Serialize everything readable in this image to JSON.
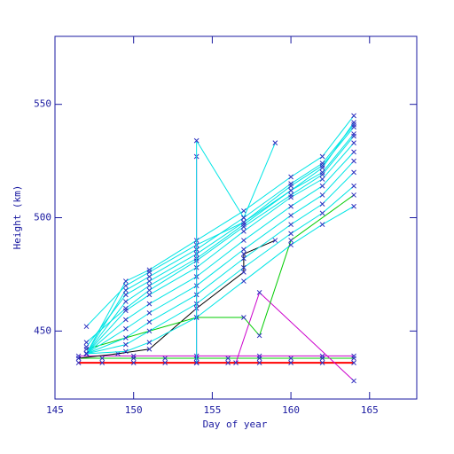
{
  "chart_data": {
    "type": "line",
    "x_label": "Day of year",
    "y_label": "Height (km)",
    "xlim": [
      145,
      168
    ],
    "ylim": [
      420,
      580
    ],
    "xticks": [
      145,
      150,
      155,
      160,
      165
    ],
    "yticks": [
      450,
      500,
      550
    ],
    "axis_color": "#1a1aa0",
    "marker_color": "#3030c0",
    "series": [
      {
        "color": "#ff0000",
        "x": [
          146.5,
          148,
          150,
          152,
          154,
          156,
          158,
          160,
          162,
          164
        ],
        "values": [
          436,
          436,
          436,
          436,
          436,
          436,
          436,
          436,
          436,
          436
        ]
      },
      {
        "color": "#00cc00",
        "x": [
          146.5,
          148,
          150,
          152,
          154,
          156,
          158,
          160,
          162,
          164
        ],
        "values": [
          438,
          438,
          438,
          438,
          438,
          438,
          438,
          438,
          438,
          438
        ]
      },
      {
        "color": "#cc00cc",
        "x": [
          146.5,
          150,
          154,
          158,
          162,
          164
        ],
        "values": [
          439,
          439,
          439,
          439,
          439,
          439
        ]
      },
      {
        "color": "#cc00cc",
        "x": [
          154,
          154
        ],
        "values": [
          436,
          527
        ]
      },
      {
        "color": "#cc00cc",
        "x": [
          156.5,
          158,
          164
        ],
        "values": [
          436,
          467,
          428
        ]
      },
      {
        "color": "#000000",
        "x": [
          146.5,
          149,
          151,
          154,
          157,
          157,
          159
        ],
        "values": [
          438,
          440,
          442,
          460,
          476,
          484,
          490
        ]
      },
      {
        "color": "#00cc00",
        "x": [
          147,
          154,
          157,
          158,
          160,
          164
        ],
        "values": [
          442,
          456,
          456,
          448,
          490,
          510
        ]
      },
      {
        "color": "#00e5e5",
        "x": [
          147,
          149.5,
          151,
          154,
          157,
          160,
          162,
          164
        ],
        "values": [
          440,
          472,
          477,
          490,
          503,
          518,
          527,
          545
        ]
      },
      {
        "color": "#00e5e5",
        "x": [
          147,
          149.5,
          151,
          154,
          157,
          160,
          162,
          164
        ],
        "values": [
          440,
          468,
          474,
          486,
          500,
          515,
          524,
          541
        ]
      },
      {
        "color": "#00e5e5",
        "x": [
          147,
          149.5,
          151,
          154,
          157,
          160,
          162,
          164
        ],
        "values": [
          440,
          463,
          470,
          482,
          497,
          512,
          520,
          537
        ]
      },
      {
        "color": "#00e5e5",
        "x": [
          147,
          149.5,
          151,
          154,
          157,
          160,
          162,
          164
        ],
        "values": [
          440,
          459,
          466,
          478,
          494,
          509,
          517,
          533
        ]
      },
      {
        "color": "#00e5e5",
        "x": [
          147,
          149.5,
          151,
          154,
          157,
          160,
          162,
          164
        ],
        "values": [
          440,
          455,
          462,
          474,
          490,
          505,
          514,
          529
        ]
      },
      {
        "color": "#00e5e5",
        "x": [
          147,
          149.5,
          151,
          154,
          157,
          160,
          162,
          164
        ],
        "values": [
          440,
          451,
          458,
          470,
          486,
          501,
          510,
          525
        ]
      },
      {
        "color": "#00e5e5",
        "x": [
          147,
          149.5,
          151,
          154,
          157,
          160,
          162,
          164
        ],
        "values": [
          440,
          447,
          454,
          466,
          482,
          497,
          506,
          520
        ]
      },
      {
        "color": "#00e5e5",
        "x": [
          147,
          149.5,
          151,
          154,
          157,
          160,
          162,
          164
        ],
        "values": [
          440,
          444,
          450,
          462,
          478,
          493,
          502,
          514
        ]
      },
      {
        "color": "#00e5e5",
        "x": [
          147,
          149.5,
          151,
          154,
          157,
          160,
          162,
          164
        ],
        "values": [
          452,
          470,
          476,
          488,
          498,
          512,
          522,
          542
        ]
      },
      {
        "color": "#00e5e5",
        "x": [
          147,
          149.5,
          151,
          154,
          157,
          160,
          162,
          164
        ],
        "values": [
          445,
          460,
          468,
          481,
          496,
          510,
          519,
          536
        ]
      },
      {
        "color": "#00e5e5",
        "x": [
          147,
          149.5,
          151,
          154,
          157,
          160,
          162,
          164
        ],
        "values": [
          440,
          441,
          445,
          456,
          472,
          488,
          497,
          505
        ]
      },
      {
        "color": "#00e5e5",
        "x": [
          147,
          149.5,
          151,
          154,
          157,
          160,
          162,
          164
        ],
        "values": [
          443,
          466,
          472,
          484,
          498,
          514,
          523,
          540
        ]
      },
      {
        "color": "#00e5e5",
        "x": [
          154,
          154,
          157,
          159
        ],
        "values": [
          436,
          534,
          500,
          533
        ]
      }
    ]
  }
}
